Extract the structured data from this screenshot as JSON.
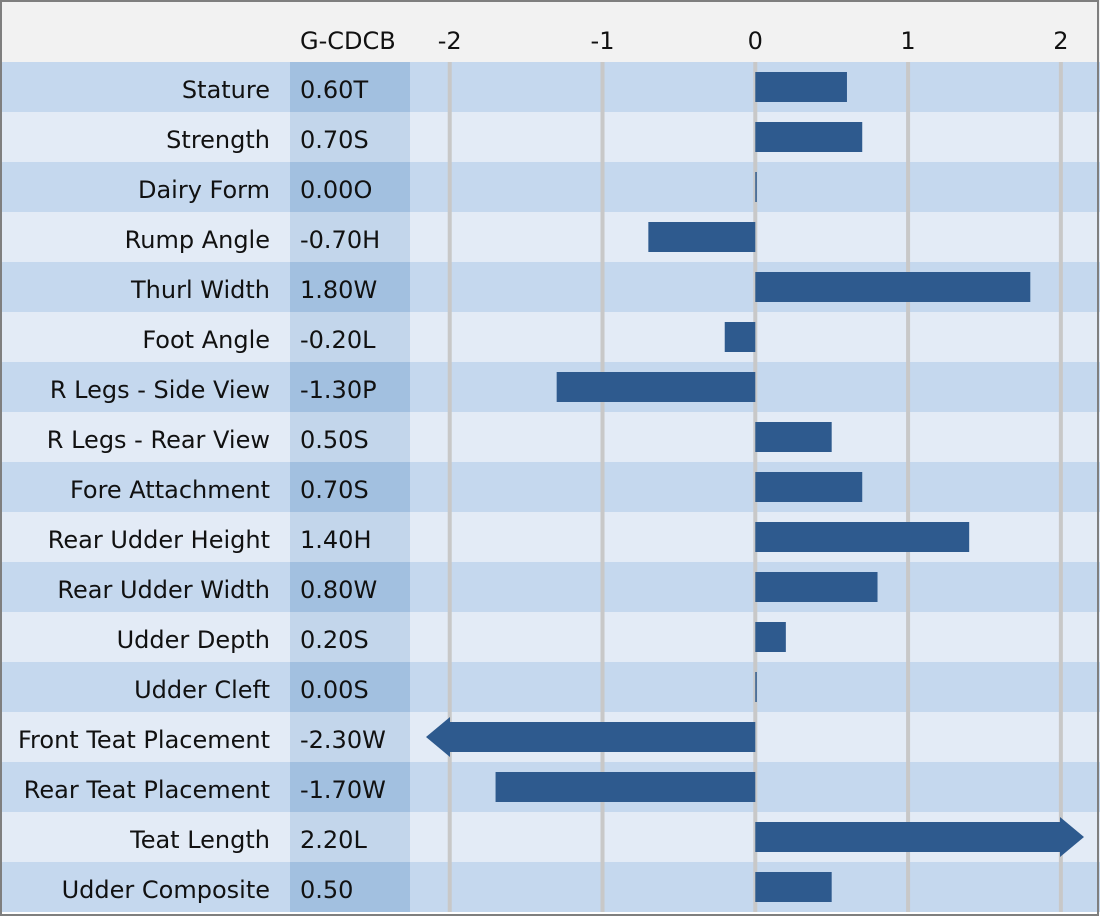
{
  "chart_data": {
    "type": "bar",
    "orientation": "horizontal",
    "column_header": "G-CDCB",
    "categories": [
      "Stature",
      "Strength",
      "Dairy Form",
      "Rump Angle",
      "Thurl Width",
      "Foot Angle",
      "R Legs - Side View",
      "R Legs - Rear View",
      "Fore Attachment",
      "Rear Udder Height",
      "Rear Udder Width",
      "Udder Depth",
      "Udder Cleft",
      "Front Teat Placement",
      "Rear Teat Placement",
      "Teat Length",
      "Udder Composite"
    ],
    "values": [
      0.6,
      0.7,
      0.0,
      -0.7,
      1.8,
      -0.2,
      -1.3,
      0.5,
      0.7,
      1.4,
      0.8,
      0.2,
      0.0,
      -2.3,
      -1.7,
      2.2,
      0.5
    ],
    "value_labels": [
      "0.60T",
      "0.70S",
      "0.00O",
      "-0.70H",
      "1.80W",
      "-0.20L",
      "-1.30P",
      "0.50S",
      "0.70S",
      "1.40H",
      "0.80W",
      "0.20S",
      "0.00S",
      "-2.30W",
      "-1.70W",
      "2.20L",
      "0.50"
    ],
    "color": "#2e5a8e",
    "xlim": [
      -2.26,
      2.23
    ],
    "xticks": [
      -2,
      -1,
      0,
      1,
      2
    ],
    "grid": true
  }
}
